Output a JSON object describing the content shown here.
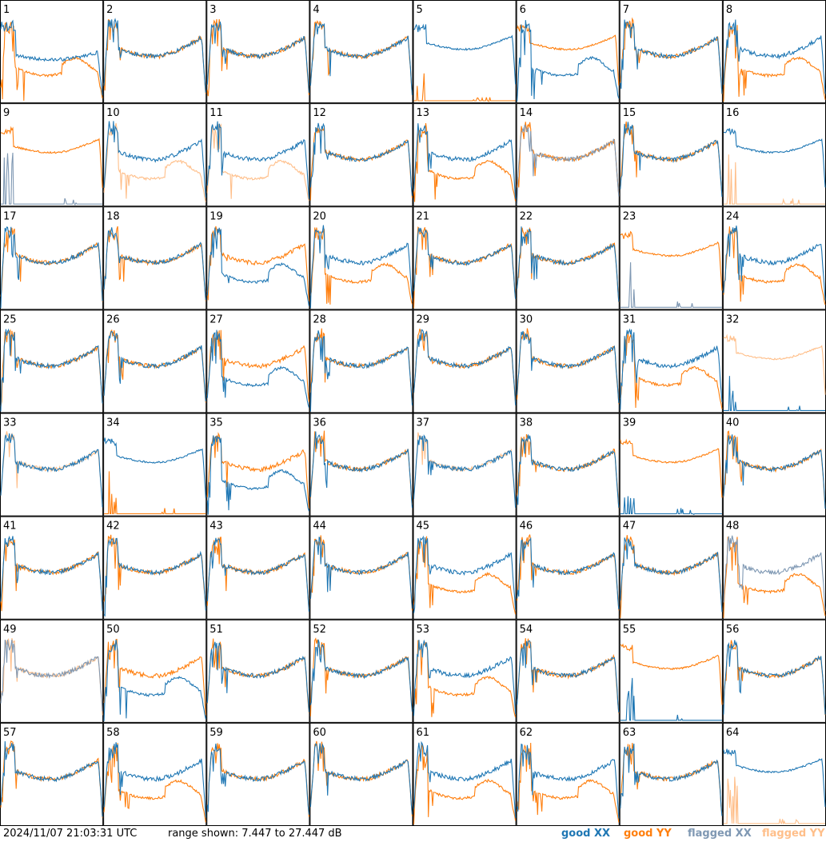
{
  "chart_data": {
    "type": "line",
    "title": "",
    "layout": "8x8 grid of per-antenna bandpass spectra",
    "panel_labels": [
      "1",
      "2",
      "3",
      "4",
      "5",
      "6",
      "7",
      "8",
      "9",
      "10",
      "11",
      "12",
      "13",
      "14",
      "15",
      "16",
      "17",
      "18",
      "19",
      "20",
      "21",
      "22",
      "23",
      "24",
      "25",
      "26",
      "27",
      "28",
      "29",
      "30",
      "31",
      "32",
      "33",
      "34",
      "35",
      "36",
      "37",
      "38",
      "39",
      "40",
      "41",
      "42",
      "43",
      "44",
      "45",
      "46",
      "47",
      "48",
      "49",
      "50",
      "51",
      "52",
      "53",
      "54",
      "55",
      "56",
      "57",
      "58",
      "59",
      "60",
      "61",
      "62",
      "63",
      "64"
    ],
    "y_range_db": [
      7.447,
      27.447
    ],
    "grid": false,
    "legend_placement": "bottom-right",
    "series": [
      {
        "name": "good XX",
        "color": "#1f77b4"
      },
      {
        "name": "good YY",
        "color": "#ff7f0e"
      },
      {
        "name": "flagged XX",
        "color": "#7f98b3"
      },
      {
        "name": "flagged YY",
        "color": "#ffbf8a"
      }
    ],
    "panels": [
      {
        "xx": "s",
        "yy": "d",
        "yyf": false,
        "xxf": false
      },
      {
        "xx": "n",
        "yy": "n"
      },
      {
        "xx": "n",
        "yy": "n"
      },
      {
        "xx": "n",
        "yy": "n"
      },
      {
        "xx": "m",
        "yy": "z"
      },
      {
        "xx": "d",
        "yy": "m"
      },
      {
        "xx": "n",
        "yy": "n"
      },
      {
        "xx": "n",
        "yy": "d"
      },
      {
        "xx": "z",
        "yy": "m",
        "xxf": true
      },
      {
        "xx": "n",
        "yy": "d",
        "yyf": true
      },
      {
        "xx": "n",
        "yy": "d",
        "yyf": true
      },
      {
        "xx": "n",
        "yy": "n"
      },
      {
        "xx": "n",
        "yy": "d"
      },
      {
        "xx": "n",
        "yy": "n",
        "xxf": true
      },
      {
        "xx": "n",
        "yy": "n"
      },
      {
        "xx": "m",
        "yy": "z",
        "yyf": true
      },
      {
        "xx": "n",
        "yy": "n"
      },
      {
        "xx": "n",
        "yy": "n"
      },
      {
        "xx": "d",
        "yy": "n"
      },
      {
        "xx": "n",
        "yy": "d"
      },
      {
        "xx": "n",
        "yy": "n"
      },
      {
        "xx": "n",
        "yy": "n"
      },
      {
        "xx": "z",
        "yy": "m",
        "xxf": true
      },
      {
        "xx": "n",
        "yy": "d"
      },
      {
        "xx": "n",
        "yy": "n"
      },
      {
        "xx": "n",
        "yy": "n"
      },
      {
        "xx": "d",
        "yy": "n"
      },
      {
        "xx": "n",
        "yy": "n"
      },
      {
        "xx": "n",
        "yy": "n"
      },
      {
        "xx": "n",
        "yy": "n"
      },
      {
        "xx": "n",
        "yy": "d"
      },
      {
        "xx": "z",
        "yy": "m",
        "yyf": true
      },
      {
        "xx": "n",
        "yy": "n",
        "yyf": true
      },
      {
        "xx": "m",
        "yy": "z"
      },
      {
        "xx": "d",
        "yy": "n"
      },
      {
        "xx": "n",
        "yy": "n"
      },
      {
        "xx": "n",
        "yy": "n",
        "yyf": true
      },
      {
        "xx": "n",
        "yy": "n"
      },
      {
        "xx": "z",
        "yy": "m"
      },
      {
        "xx": "n",
        "yy": "n"
      },
      {
        "xx": "n",
        "yy": "n"
      },
      {
        "xx": "n",
        "yy": "n"
      },
      {
        "xx": "n",
        "yy": "n"
      },
      {
        "xx": "n",
        "yy": "n"
      },
      {
        "xx": "n",
        "yy": "d"
      },
      {
        "xx": "n",
        "yy": "n"
      },
      {
        "xx": "n",
        "yy": "n"
      },
      {
        "xx": "n",
        "yy": "d",
        "xxf": true
      },
      {
        "xx": "n",
        "yy": "n",
        "xxf": true,
        "yyf": true
      },
      {
        "xx": "d",
        "yy": "n"
      },
      {
        "xx": "n",
        "yy": "n"
      },
      {
        "xx": "n",
        "yy": "n"
      },
      {
        "xx": "n",
        "yy": "d"
      },
      {
        "xx": "n",
        "yy": "n"
      },
      {
        "xx": "z",
        "yy": "m"
      },
      {
        "xx": "n",
        "yy": "n"
      },
      {
        "xx": "n",
        "yy": "n"
      },
      {
        "xx": "n",
        "yy": "d"
      },
      {
        "xx": "n",
        "yy": "n"
      },
      {
        "xx": "n",
        "yy": "n"
      },
      {
        "xx": "n",
        "yy": "d"
      },
      {
        "xx": "n",
        "yy": "d"
      },
      {
        "xx": "n",
        "yy": "n"
      },
      {
        "xx": "m",
        "yy": "z",
        "yyf": true
      }
    ]
  },
  "footer": {
    "timestamp": "2024/11/07 21:03:31 UTC",
    "range_text": "range shown: 7.447 to 27.447 dB",
    "legend": {
      "good_xx": "good XX",
      "good_yy": "good YY",
      "flagged_xx": "flagged XX",
      "flagged_yy": "flagged YY"
    }
  }
}
